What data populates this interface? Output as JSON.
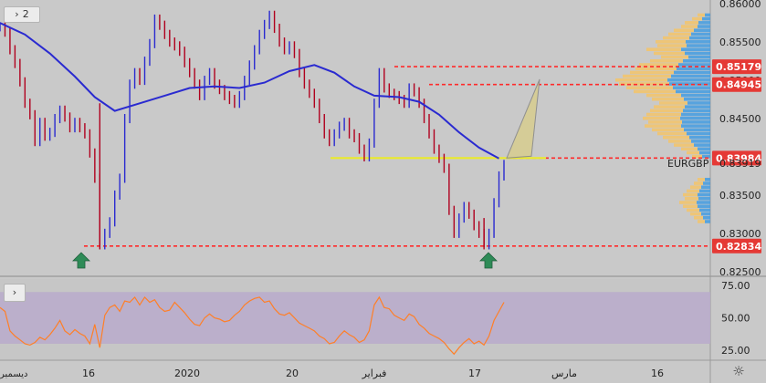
{
  "toolbar": {
    "collapse_icon": "chevron-right-icon",
    "series_count": "2",
    "rsi_collapse_icon": "chevron-right-icon"
  },
  "symbol_label": "EURGBP",
  "settings_icon": "gear-icon",
  "colors": {
    "price": "#b0001e",
    "ma": "#2a2ad0",
    "rsi": "#ff7f27",
    "rsi_band": "#b9aacb",
    "level_line": "#ff2a2a",
    "level_tag": "#e53935",
    "support_line": "#eaea2a",
    "volume_profile_up": "#4a9fe0",
    "volume_profile_down": "#f2c46e",
    "arrow": "#2e8b57"
  },
  "chart_data": [
    {
      "type": "line",
      "panel": "price",
      "x_ticks": [
        "16",
        "2020",
        "20",
        "فبراير",
        "17",
        "مارس",
        "16"
      ],
      "left_edge_label": "ديسمبر",
      "y_ticks": [
        "0.86000",
        "0.85500",
        "0.85000",
        "0.84500",
        "0.84000",
        "0.83500",
        "0.83000",
        "0.82500"
      ],
      "ylim": [
        0.8245,
        0.8605
      ],
      "price_tags": [
        {
          "label": "0.85179",
          "value": 0.85179,
          "style": "level"
        },
        {
          "label": "0.84945",
          "value": 0.84945,
          "style": "level"
        },
        {
          "label": "0.83984",
          "value": 0.83984,
          "style": "level"
        },
        {
          "label": "0.83919",
          "value": 0.83919,
          "style": "current"
        },
        {
          "label": "0.82834",
          "value": 0.82834,
          "style": "level"
        }
      ],
      "horizontal_levels": [
        0.85179,
        0.84945,
        0.83984,
        0.82834
      ],
      "support_level": 0.83984,
      "series": [
        {
          "kind": "price",
          "points": [
            [
              0,
              0.857
            ],
            [
              2,
              0.8563
            ],
            [
              4,
              0.854
            ],
            [
              6,
              0.8522
            ],
            [
              8,
              0.8498
            ],
            [
              10,
              0.847
            ],
            [
              12,
              0.8455
            ],
            [
              14,
              0.842
            ],
            [
              16,
              0.8445
            ],
            [
              18,
              0.8427
            ],
            [
              20,
              0.8432
            ],
            [
              22,
              0.845
            ],
            [
              24,
              0.8461
            ],
            [
              26,
              0.8452
            ],
            [
              28,
              0.8438
            ],
            [
              30,
              0.8445
            ],
            [
              32,
              0.8438
            ],
            [
              34,
              0.843
            ],
            [
              36,
              0.8405
            ],
            [
              38,
              0.8372
            ],
            [
              40,
              0.8285
            ],
            [
              42,
              0.83
            ],
            [
              44,
              0.8315
            ],
            [
              46,
              0.835
            ],
            [
              48,
              0.8372
            ],
            [
              50,
              0.845
            ],
            [
              52,
              0.8495
            ],
            [
              54,
              0.851
            ],
            [
              56,
              0.85
            ],
            [
              58,
              0.8525
            ],
            [
              60,
              0.8548
            ],
            [
              62,
              0.858
            ],
            [
              64,
              0.8572
            ],
            [
              66,
              0.856
            ],
            [
              68,
              0.855
            ],
            [
              70,
              0.8545
            ],
            [
              72,
              0.8538
            ],
            [
              74,
              0.8523
            ],
            [
              76,
              0.851
            ],
            [
              78,
              0.8495
            ],
            [
              80,
              0.848
            ],
            [
              82,
              0.85
            ],
            [
              84,
              0.851
            ],
            [
              86,
              0.8495
            ],
            [
              88,
              0.8488
            ],
            [
              90,
              0.848
            ],
            [
              92,
              0.8475
            ],
            [
              94,
              0.847
            ],
            [
              96,
              0.848
            ],
            [
              98,
              0.85
            ],
            [
              100,
              0.852
            ],
            [
              102,
              0.854
            ],
            [
              104,
              0.856
            ],
            [
              106,
              0.8573
            ],
            [
              108,
              0.8585
            ],
            [
              110,
              0.8568
            ],
            [
              112,
              0.855
            ],
            [
              114,
              0.854
            ],
            [
              116,
              0.8545
            ],
            [
              118,
              0.8535
            ],
            [
              120,
              0.851
            ],
            [
              122,
              0.8495
            ],
            [
              124,
              0.8483
            ],
            [
              126,
              0.847
            ],
            [
              128,
              0.845
            ],
            [
              130,
              0.843
            ],
            [
              132,
              0.842
            ],
            [
              134,
              0.843
            ],
            [
              136,
              0.844
            ],
            [
              138,
              0.8445
            ],
            [
              140,
              0.843
            ],
            [
              142,
              0.8425
            ],
            [
              144,
              0.841
            ],
            [
              146,
              0.84
            ],
            [
              148,
              0.8418
            ],
            [
              150,
              0.847
            ],
            [
              152,
              0.851
            ],
            [
              154,
              0.849
            ],
            [
              156,
              0.8483
            ],
            [
              158,
              0.848
            ],
            [
              160,
              0.8475
            ],
            [
              162,
              0.847
            ],
            [
              164,
              0.849
            ],
            [
              166,
              0.8485
            ],
            [
              168,
              0.847
            ],
            [
              170,
              0.845
            ],
            [
              172,
              0.843
            ],
            [
              174,
              0.841
            ],
            [
              176,
              0.8398
            ],
            [
              178,
              0.8385
            ],
            [
              180,
              0.833
            ],
            [
              182,
              0.83
            ],
            [
              184,
              0.832
            ],
            [
              186,
              0.8335
            ],
            [
              188,
              0.8325
            ],
            [
              190,
              0.831
            ],
            [
              192,
              0.83
            ],
            [
              194,
              0.8285
            ],
            [
              196,
              0.83
            ],
            [
              198,
              0.834
            ],
            [
              200,
              0.8375
            ],
            [
              202,
              0.839
            ]
          ]
        },
        {
          "kind": "moving_average",
          "points": [
            [
              0,
              0.8575
            ],
            [
              10,
              0.856
            ],
            [
              20,
              0.8535
            ],
            [
              30,
              0.8505
            ],
            [
              38,
              0.8478
            ],
            [
              46,
              0.846
            ],
            [
              56,
              0.847
            ],
            [
              66,
              0.848
            ],
            [
              76,
              0.849
            ],
            [
              86,
              0.8492
            ],
            [
              96,
              0.849
            ],
            [
              106,
              0.8497
            ],
            [
              116,
              0.8512
            ],
            [
              126,
              0.852
            ],
            [
              134,
              0.851
            ],
            [
              142,
              0.8492
            ],
            [
              150,
              0.848
            ],
            [
              160,
              0.8478
            ],
            [
              168,
              0.8472
            ],
            [
              176,
              0.8455
            ],
            [
              184,
              0.8432
            ],
            [
              192,
              0.8412
            ],
            [
              200,
              0.8398
            ]
          ]
        }
      ]
    },
    {
      "type": "line",
      "panel": "rsi",
      "y_ticks": [
        "75.00",
        "50.00",
        "25.00"
      ],
      "ylim": [
        18,
        80
      ],
      "band": [
        30,
        70
      ],
      "series": [
        {
          "kind": "rsi",
          "points": [
            [
              0,
              58
            ],
            [
              2,
              55
            ],
            [
              4,
              40
            ],
            [
              6,
              36
            ],
            [
              8,
              33
            ],
            [
              10,
              30
            ],
            [
              12,
              29
            ],
            [
              14,
              31
            ],
            [
              16,
              35
            ],
            [
              18,
              33
            ],
            [
              20,
              37
            ],
            [
              22,
              42
            ],
            [
              24,
              48
            ],
            [
              26,
              40
            ],
            [
              28,
              37
            ],
            [
              30,
              41
            ],
            [
              32,
              38
            ],
            [
              34,
              36
            ],
            [
              36,
              30
            ],
            [
              38,
              45
            ],
            [
              40,
              27
            ],
            [
              42,
              52
            ],
            [
              44,
              58
            ],
            [
              46,
              60
            ],
            [
              48,
              55
            ],
            [
              50,
              63
            ],
            [
              52,
              62
            ],
            [
              54,
              66
            ],
            [
              56,
              60
            ],
            [
              58,
              66
            ],
            [
              60,
              62
            ],
            [
              62,
              64
            ],
            [
              64,
              58
            ],
            [
              66,
              55
            ],
            [
              68,
              56
            ],
            [
              70,
              62
            ],
            [
              72,
              58
            ],
            [
              74,
              54
            ],
            [
              76,
              49
            ],
            [
              78,
              45
            ],
            [
              80,
              44
            ],
            [
              82,
              50
            ],
            [
              84,
              53
            ],
            [
              86,
              50
            ],
            [
              88,
              49
            ],
            [
              90,
              47
            ],
            [
              92,
              48
            ],
            [
              94,
              52
            ],
            [
              96,
              55
            ],
            [
              98,
              60
            ],
            [
              100,
              63
            ],
            [
              102,
              65
            ],
            [
              104,
              66
            ],
            [
              106,
              62
            ],
            [
              108,
              63
            ],
            [
              110,
              57
            ],
            [
              112,
              53
            ],
            [
              114,
              52
            ],
            [
              116,
              54
            ],
            [
              118,
              50
            ],
            [
              120,
              46
            ],
            [
              122,
              44
            ],
            [
              124,
              42
            ],
            [
              126,
              40
            ],
            [
              128,
              36
            ],
            [
              130,
              34
            ],
            [
              132,
              30
            ],
            [
              134,
              31
            ],
            [
              136,
              36
            ],
            [
              138,
              40
            ],
            [
              140,
              37
            ],
            [
              142,
              35
            ],
            [
              144,
              31
            ],
            [
              146,
              33
            ],
            [
              148,
              40
            ],
            [
              150,
              60
            ],
            [
              152,
              66
            ],
            [
              154,
              58
            ],
            [
              156,
              57
            ],
            [
              158,
              52
            ],
            [
              160,
              50
            ],
            [
              162,
              48
            ],
            [
              164,
              53
            ],
            [
              166,
              51
            ],
            [
              168,
              45
            ],
            [
              170,
              42
            ],
            [
              172,
              38
            ],
            [
              174,
              36
            ],
            [
              176,
              34
            ],
            [
              178,
              31
            ],
            [
              180,
              26
            ],
            [
              182,
              22
            ],
            [
              184,
              27
            ],
            [
              186,
              31
            ],
            [
              188,
              34
            ],
            [
              190,
              30
            ],
            [
              192,
              32
            ],
            [
              194,
              29
            ],
            [
              196,
              36
            ],
            [
              198,
              48
            ],
            [
              200,
              55
            ],
            [
              202,
              62
            ]
          ]
        }
      ]
    }
  ]
}
